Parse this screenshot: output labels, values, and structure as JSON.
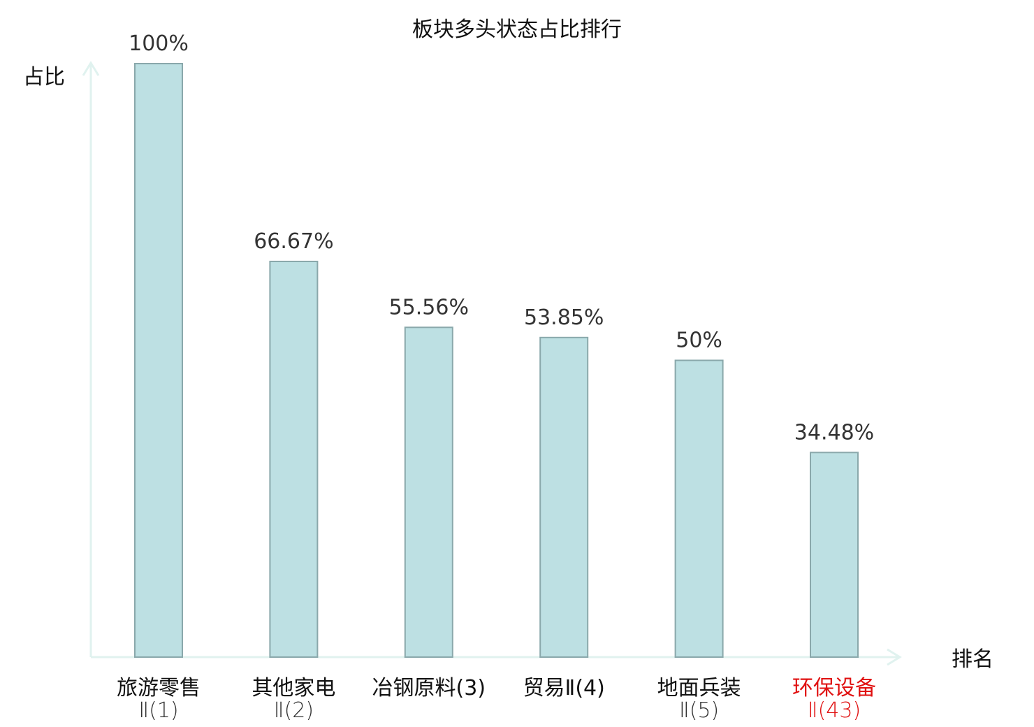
{
  "chart_data": {
    "type": "bar",
    "title": "板块多头状态占比排行",
    "ylabel": "占比",
    "xlabel": "排名",
    "ylim": [
      0,
      100
    ],
    "grid": false,
    "categories": [
      {
        "name": "旅游零售",
        "sub": "Ⅱ(1)",
        "highlight": false
      },
      {
        "name": "其他家电",
        "sub": "Ⅱ(2)",
        "highlight": false
      },
      {
        "name": "冶钢原料(3)",
        "sub": "",
        "highlight": false
      },
      {
        "name": "贸易Ⅱ(4)",
        "sub": "",
        "highlight": false
      },
      {
        "name": "地面兵装",
        "sub": "Ⅱ(5)",
        "highlight": false
      },
      {
        "name": "环保设备",
        "sub": "Ⅱ(43)",
        "highlight": true
      }
    ],
    "values": [
      100,
      66.67,
      55.56,
      53.85,
      50,
      34.48
    ],
    "value_labels": [
      "100%",
      "66.67%",
      "55.56%",
      "53.85%",
      "50%",
      "34.48%"
    ]
  },
  "colors": {
    "bar_fill": "#bde0e3",
    "bar_stroke": "#8aa8ab",
    "axis": "#e0f2ef",
    "text": "#111111",
    "value_text": "#333333",
    "highlight": "#e01010"
  }
}
